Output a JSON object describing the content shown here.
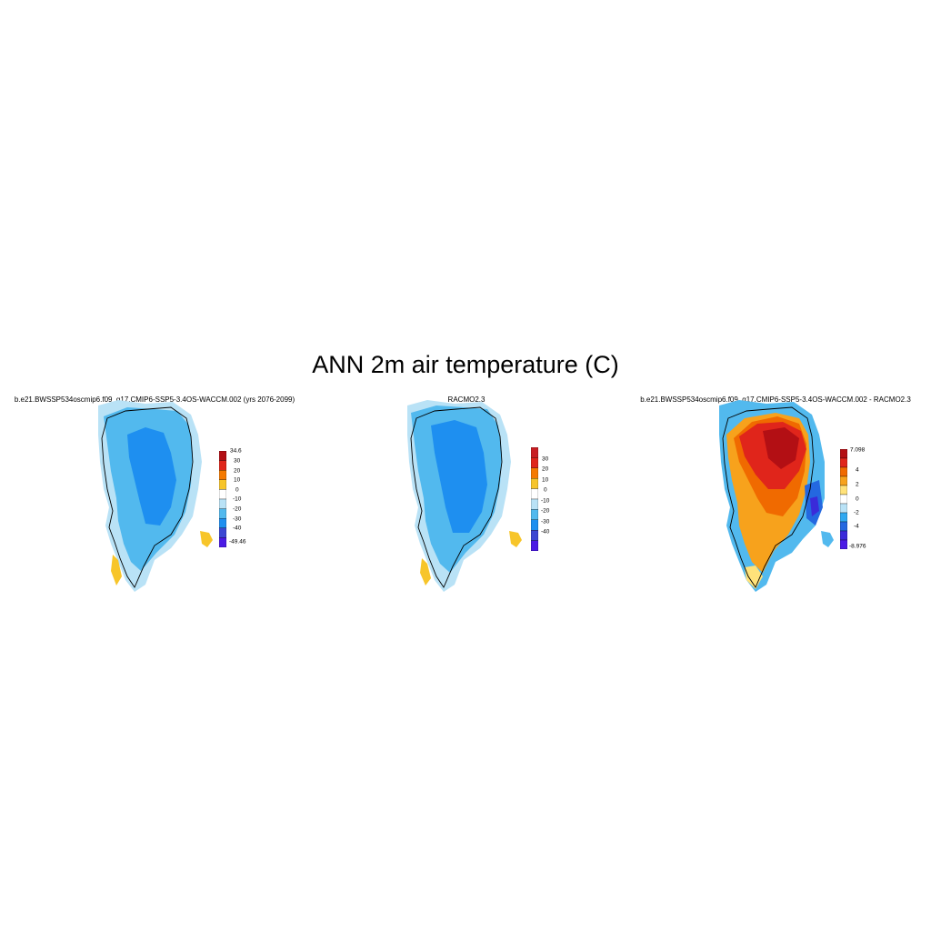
{
  "figure": {
    "title": "ANN 2m air temperature (C)"
  },
  "panels": [
    {
      "title": "b.e21.BWSSP534oscmip6.f09_g17.CMIP6-SSP5-3.4OS-WACCM.002 (yrs 2076-2099)",
      "colorbar": {
        "labels": [
          "34.6",
          "30",
          "20",
          "10",
          "0",
          "-10",
          "-20",
          "-30",
          "-40",
          "-49.46"
        ],
        "colors": [
          "#b30f14",
          "#e0251b",
          "#f57a00",
          "#f7c52a",
          "#ffffff",
          "#b9e2f6",
          "#52b9ee",
          "#1e8ff0",
          "#3c47d3",
          "#4b1ae5"
        ]
      }
    },
    {
      "title": "RACMO2.3",
      "colorbar": {
        "labels": [
          "30",
          "20",
          "10",
          "0",
          "-10",
          "-20",
          "-30",
          "-40"
        ],
        "colors": [
          "#c81e23",
          "#e0251b",
          "#f57a00",
          "#f7c52a",
          "#ffffff",
          "#b9e2f6",
          "#52b9ee",
          "#1e8ff0",
          "#3c47d3",
          "#4b1ae5"
        ]
      }
    },
    {
      "title": "b.e21.BWSSP534oscmip6.f09_g17.CMIP6-SSP5-3.4OS-WACCM.002 - RACMO2.3",
      "colorbar": {
        "labels": [
          "7.098",
          "4",
          "2",
          "0",
          "-2",
          "-4",
          "-8.976"
        ],
        "colors": [
          "#b30f14",
          "#e0251b",
          "#f06a00",
          "#f7a21c",
          "#ffe27a",
          "#ffffff",
          "#b9e2f6",
          "#30a8f0",
          "#2468e0",
          "#3a2bd9",
          "#4b1ae5"
        ]
      }
    }
  ]
}
